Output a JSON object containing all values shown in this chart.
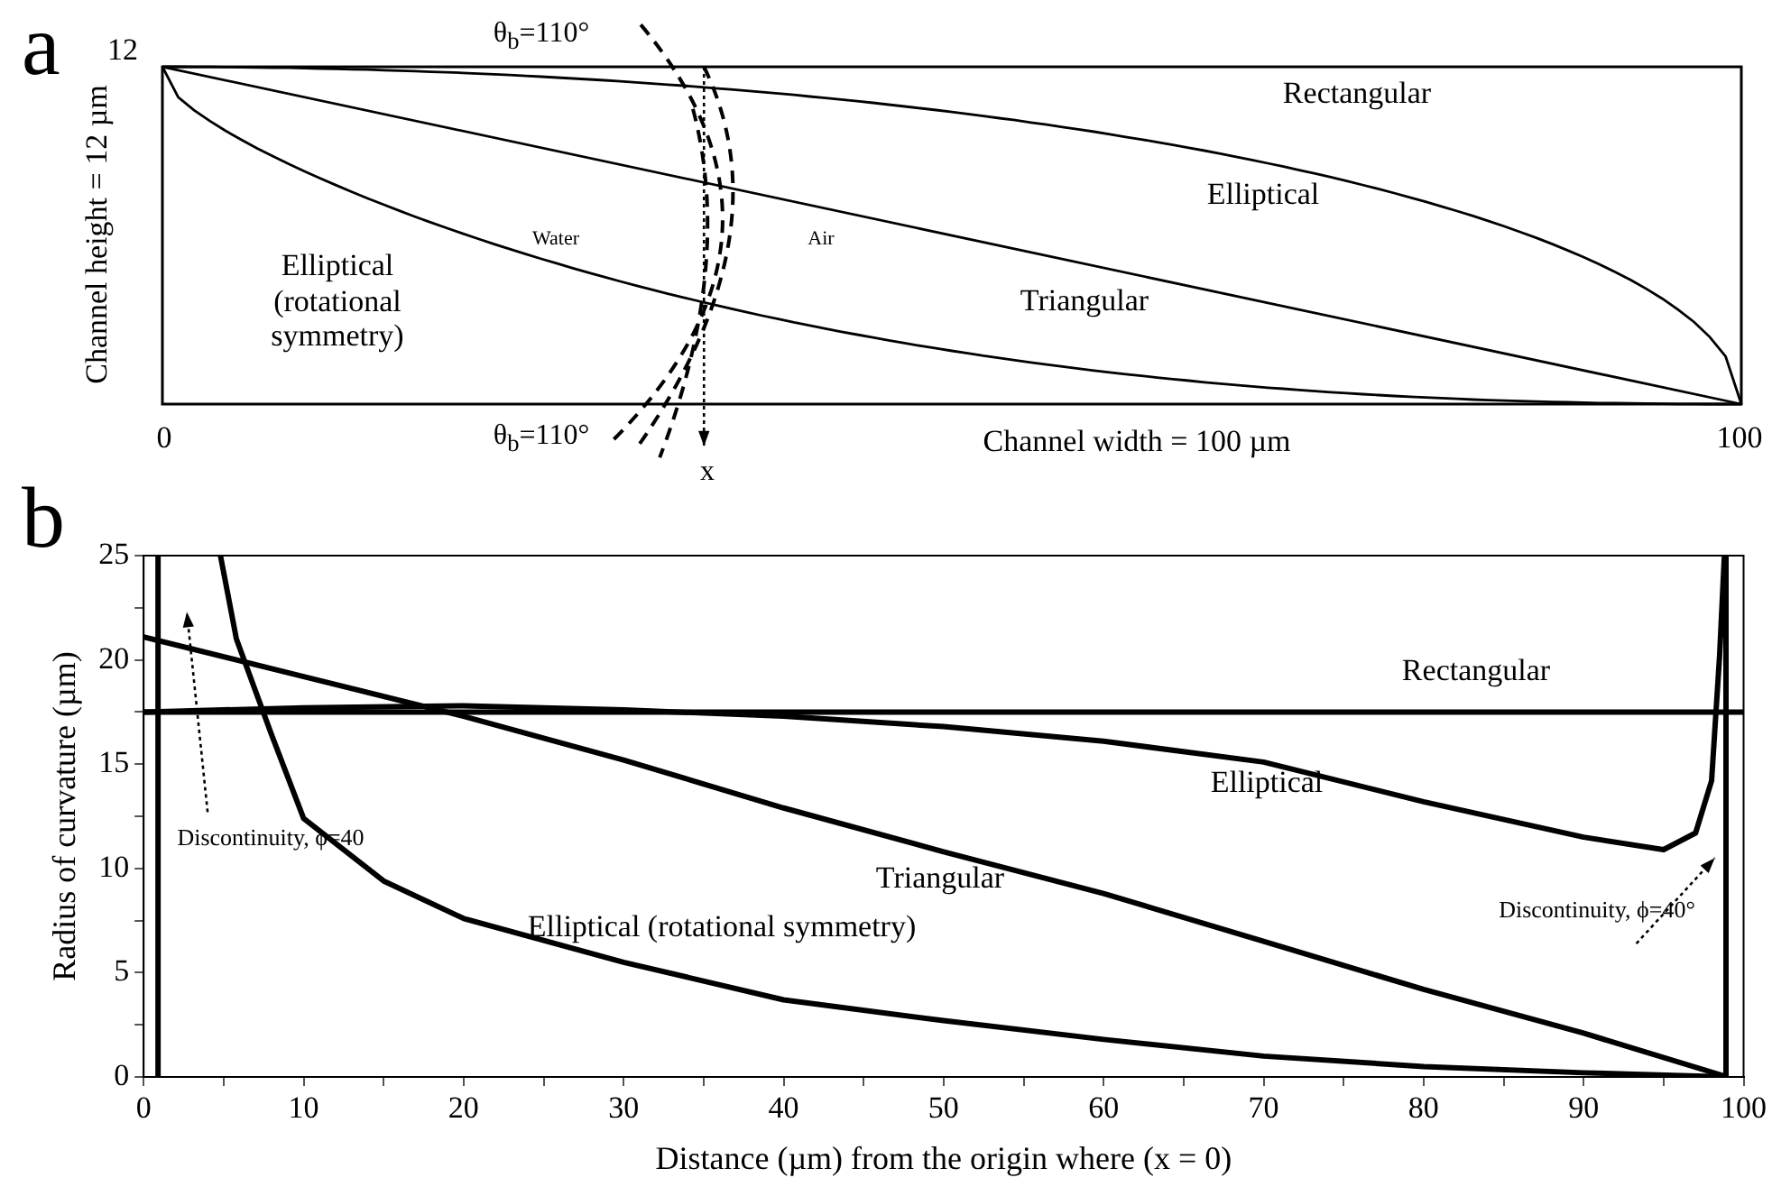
{
  "chart_data": [
    {
      "type": "other",
      "title": "a",
      "xlabel": "Channel width = 100 µm",
      "ylabel": "Channel height = 12 µm",
      "annotations": [
        "12",
        "0",
        "100",
        "Rectangular",
        "Elliptical",
        "Triangular",
        "Water",
        "Air",
        "Elliptical (rotational symmetry)",
        "θ$_{b}$=110°",
        "θ$_{b}$=110°",
        "x"
      ]
    },
    {
      "type": "line",
      "title": "b",
      "xlabel": "Distance (µm) from the origin where (x = 0)",
      "ylabel": "Radius of curvature (µm)",
      "xlim": [
        0,
        100
      ],
      "ylim": [
        0,
        25
      ],
      "xticks": [
        0,
        {
          "value": 5,
          "label": null
        },
        10,
        {
          "value": 15,
          "label": null
        },
        20,
        {
          "value": 25,
          "label": null
        },
        30,
        {
          "value": 35,
          "label": null
        },
        40,
        {
          "value": 45,
          "label": null
        },
        50,
        {
          "value": 55,
          "label": null
        },
        60,
        {
          "value": 65,
          "label": null
        },
        70,
        {
          "value": 75,
          "label": null
        },
        80,
        {
          "value": 85,
          "label": null
        },
        90,
        {
          "value": 95,
          "label": null
        },
        100
      ],
      "yticks": [
        0,
        {
          "value": 2.5,
          "label": null
        },
        5,
        {
          "value": 7.5,
          "label": null
        },
        10,
        {
          "value": 12.5,
          "label": null
        },
        15,
        {
          "value": 17.5,
          "label": null
        },
        20,
        {
          "value": 22.5,
          "label": null
        },
        25
      ],
      "marker": "none",
      "series": [
        {
          "color": "#000000",
          "x": [
            0,
            100
          ],
          "values": [
            17.5,
            17.5
          ]
        },
        {
          "color": "#000000",
          "x": [
            0,
            10,
            20,
            30,
            40,
            50,
            60,
            70,
            80,
            90,
            95,
            97,
            98,
            98.5,
            98.8,
            98.9,
            98.9
          ],
          "values": [
            17.5,
            17.7,
            17.8,
            17.6,
            17.3,
            16.8,
            16.1,
            15.1,
            13.2,
            11.5,
            10.9,
            11.7,
            14.2,
            20.2,
            25,
            25,
            0
          ]
        },
        {
          "color": "#000000",
          "x": [
            0,
            10,
            20,
            30,
            40,
            50,
            60,
            70,
            80,
            90,
            99
          ],
          "values": [
            21.1,
            19.2,
            17.3,
            15.2,
            12.9,
            10.8,
            8.8,
            6.5,
            4.2,
            2.1,
            0
          ]
        },
        {
          "color": "#000000",
          "x": [
            0.9,
            0.9,
            null,
            4.8,
            5.8,
            8,
            10,
            15,
            20,
            30,
            40,
            50,
            60,
            70,
            80,
            90,
            99
          ],
          "values": [
            0,
            25,
            null,
            25,
            21,
            16.4,
            12.4,
            9.4,
            7.6,
            5.5,
            3.7,
            2.7,
            1.8,
            1,
            0.5,
            0.2,
            0
          ]
        }
      ],
      "annotations": [
        "Rectangular",
        "Elliptical",
        "Triangular",
        "Elliptical (rotational symmetry)",
        "Discontinuity, ϕ=40",
        "Discontinuity, ϕ=40°"
      ]
    }
  ]
}
